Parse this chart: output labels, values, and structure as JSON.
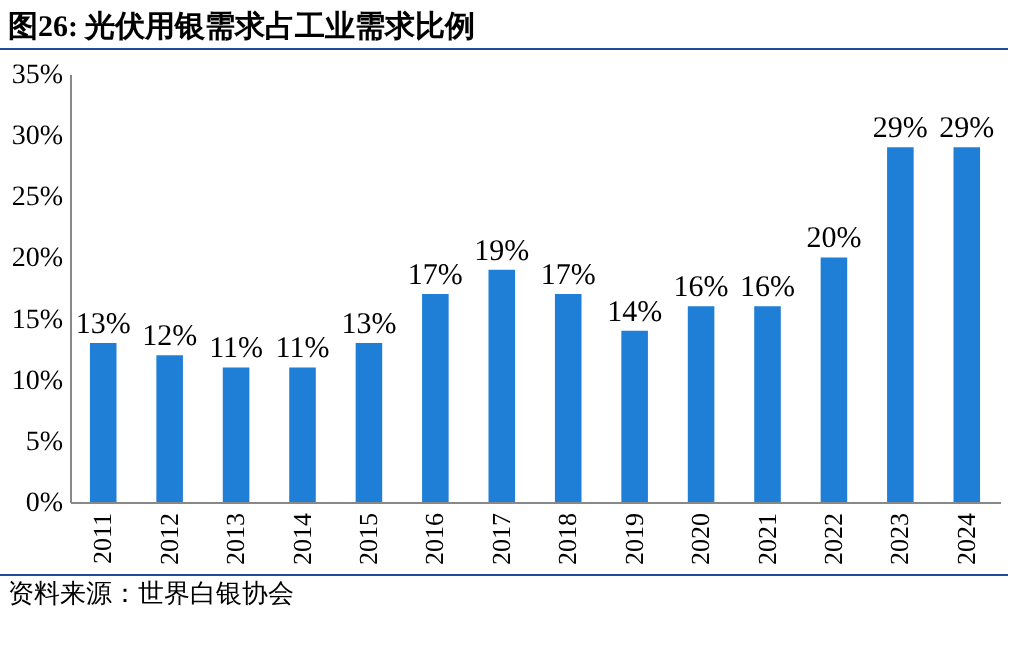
{
  "chart_data": {
    "type": "bar",
    "title": "图26:  光伏用银需求占工业需求比例",
    "categories": [
      "2011",
      "2012",
      "2013",
      "2014",
      "2015",
      "2016",
      "2017",
      "2018",
      "2019",
      "2020",
      "2021",
      "2022",
      "2023",
      "2024"
    ],
    "values": [
      13,
      12,
      11,
      11,
      13,
      17,
      19,
      17,
      14,
      16,
      16,
      20,
      29,
      29
    ],
    "value_labels": [
      "13%",
      "12%",
      "11%",
      "11%",
      "13%",
      "17%",
      "19%",
      "17%",
      "14%",
      "16%",
      "16%",
      "20%",
      "29%",
      "29%"
    ],
    "color": "#1f7fd6",
    "ylim": [
      0,
      35
    ],
    "yticks": [
      {
        "value": 0,
        "label": "0%"
      },
      {
        "value": 5,
        "label": "5%"
      },
      {
        "value": 10,
        "label": "10%"
      },
      {
        "value": 15,
        "label": "15%"
      },
      {
        "value": 20,
        "label": "20%"
      },
      {
        "value": 25,
        "label": "25%"
      },
      {
        "value": 30,
        "label": "30%"
      },
      {
        "value": 35,
        "label": "35%"
      }
    ],
    "annotations": [
      "资料来源：世界白银协会"
    ]
  }
}
